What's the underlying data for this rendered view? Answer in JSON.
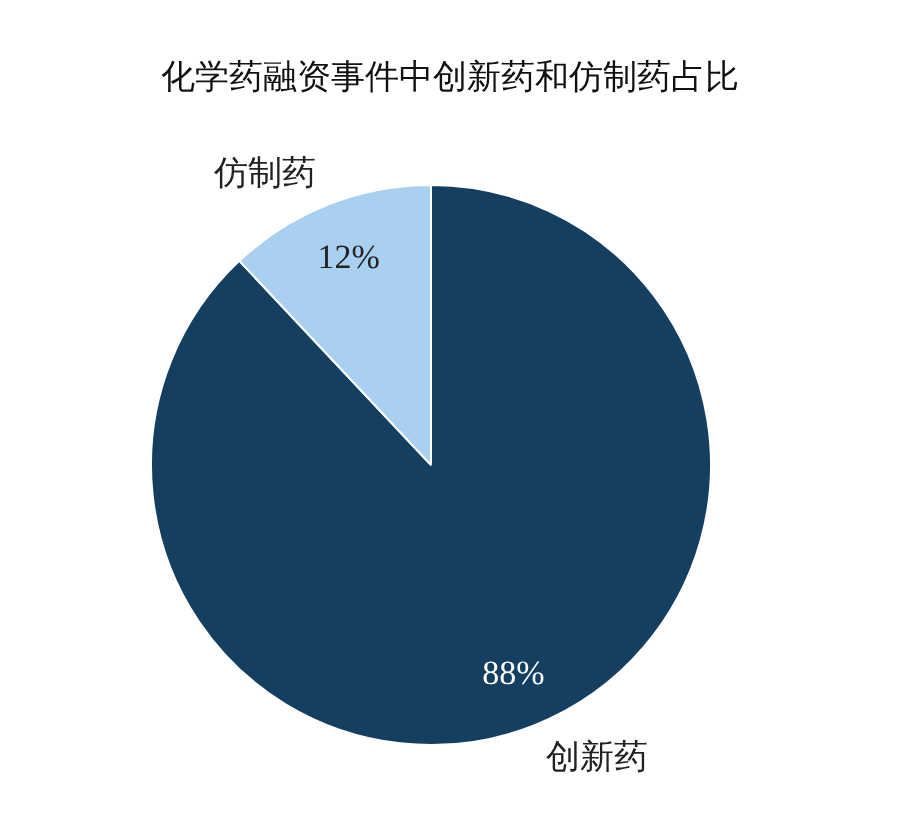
{
  "chart_data": {
    "type": "pie",
    "title": "化学药融资事件中创新药和仿制药占比",
    "categories": [
      "创新药",
      "仿制药"
    ],
    "values": [
      88,
      12
    ],
    "colors": [
      "#143f60",
      "#a9d0f0"
    ],
    "value_labels": [
      "88%",
      "12%"
    ]
  }
}
